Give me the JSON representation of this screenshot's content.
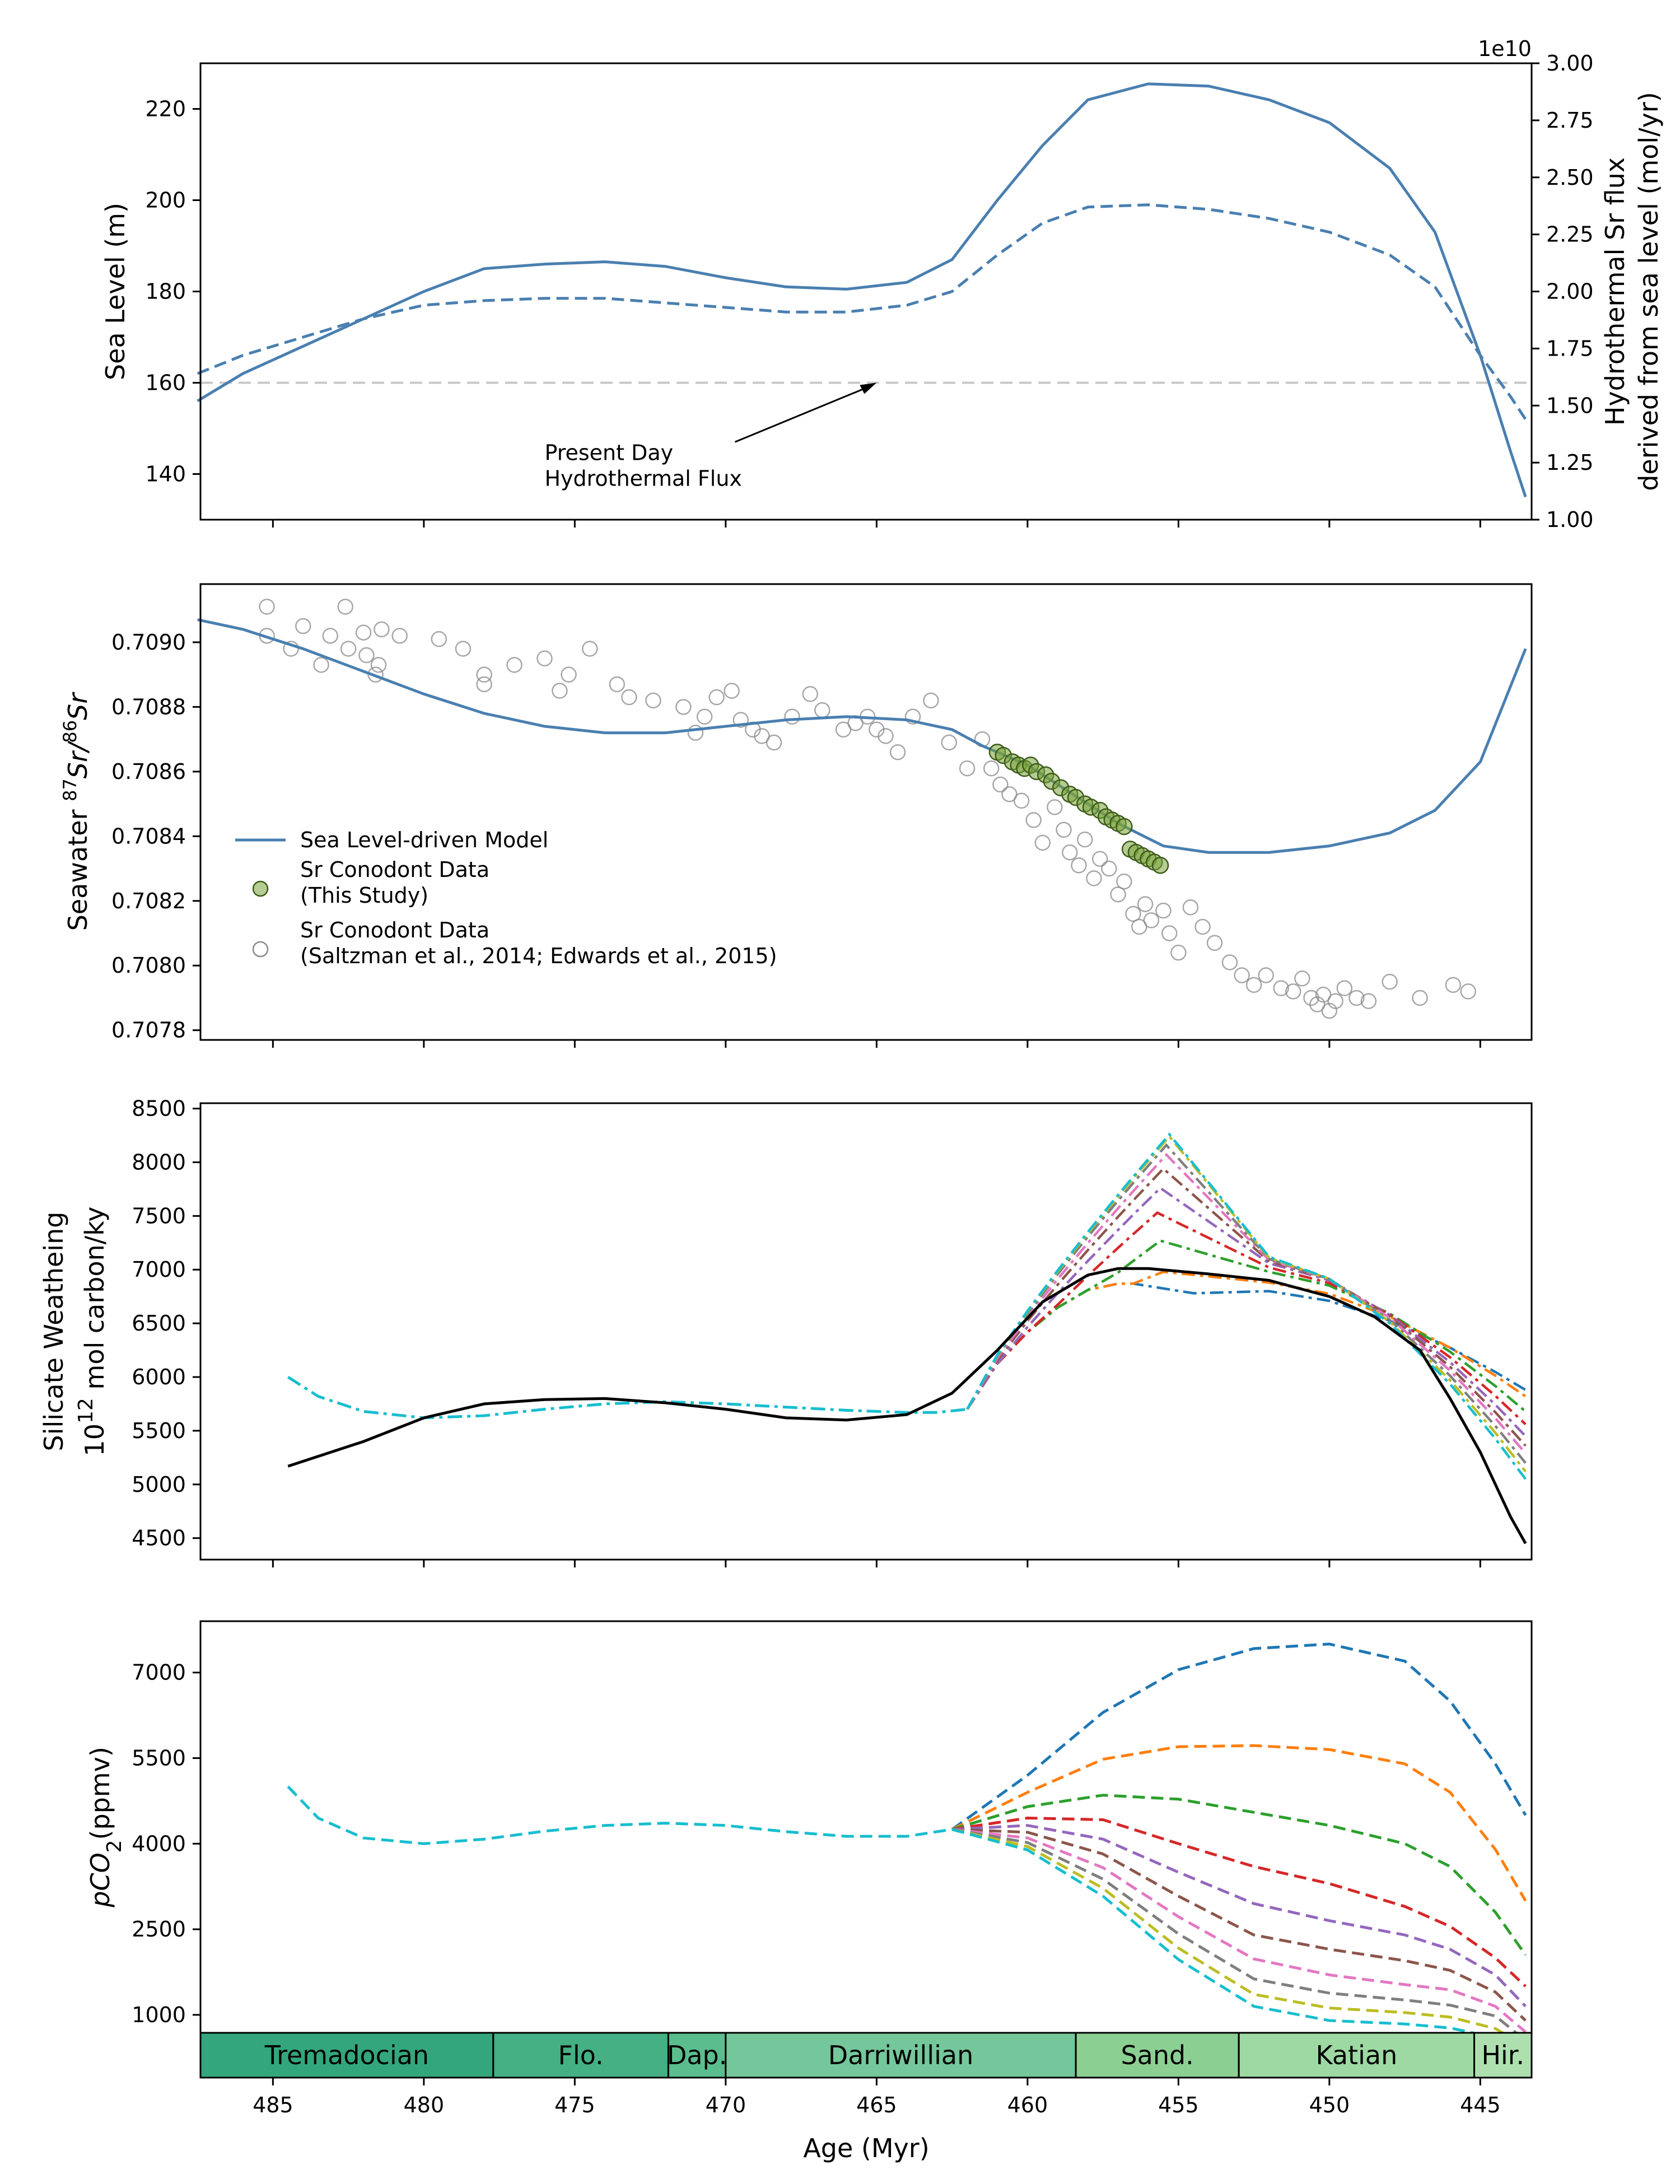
{
  "chart_data": [
    {
      "panel": "sea-level",
      "type": "line",
      "ylabel": "Sea Level (m)",
      "ylim": [
        130,
        230
      ],
      "yticks": [
        140,
        160,
        180,
        200,
        220
      ],
      "y2label_line1": "Hydrothermal Sr flux",
      "y2label_line2": "derived from sea level (mol/yr)",
      "y2_exponent": "1e10",
      "y2lim": [
        1.0,
        3.0
      ],
      "y2ticks": [
        "1.00",
        "1.25",
        "1.50",
        "1.75",
        "2.00",
        "2.25",
        "2.50",
        "2.75",
        "3.00"
      ],
      "reference_line_y": 160,
      "annotation_line1": "Present Day",
      "annotation_line2": "Hydrothermal Flux",
      "annotation_arrow_target": [
        465,
        160
      ],
      "annotation_text_anchor": [
        476,
        148
      ],
      "series": [
        {
          "style": "solid",
          "color": "#4a7fb0",
          "x": [
            487.5,
            486.0,
            484.0,
            482.0,
            480.0,
            478.0,
            476.0,
            474.0,
            472.0,
            470.0,
            468.0,
            466.0,
            464.0,
            462.5,
            461.0,
            459.5,
            458.0,
            456.0,
            454.0,
            452.0,
            450.0,
            448.0,
            446.5,
            445.0,
            444.0,
            443.5
          ],
          "y": [
            156,
            162,
            168,
            174,
            180,
            185,
            186,
            186.5,
            185.5,
            183,
            181,
            180.5,
            182,
            187,
            200,
            212,
            222,
            225.5,
            225,
            222,
            217,
            207,
            193,
            166,
            145,
            135
          ]
        },
        {
          "style": "dashed",
          "color": "#4a7fb0",
          "x": [
            487.5,
            486.0,
            484.0,
            482.0,
            480.0,
            478.0,
            476.0,
            474.0,
            472.0,
            470.0,
            468.0,
            466.0,
            464.0,
            462.5,
            461.0,
            459.5,
            458.0,
            456.0,
            454.0,
            452.0,
            450.0,
            448.0,
            446.5,
            445.0,
            444.0,
            443.5
          ],
          "y": [
            162,
            166,
            170,
            174,
            177,
            178,
            178.5,
            178.5,
            177.5,
            176.5,
            175.5,
            175.5,
            177,
            180,
            188,
            195,
            198.5,
            199,
            198,
            196,
            193,
            188,
            181,
            166,
            157,
            152
          ]
        }
      ]
    },
    {
      "panel": "strontium",
      "type": "scatter",
      "ylabel_prefix": "Seawater ",
      "ylabel_sup1": "87",
      "ylabel_mid": "Sr/",
      "ylabel_sup2": "86",
      "ylabel_suffix": "Sr",
      "ylim": [
        0.70777,
        0.70918
      ],
      "yticks": [
        "0.7078",
        "0.7080",
        "0.7082",
        "0.7084",
        "0.7086",
        "0.7088",
        "0.7090"
      ],
      "legend": [
        "Sea Level-driven Model",
        "Sr Conodont Data",
        "(This Study)",
        "Sr Conodont Data",
        "(Saltzman et al., 2014; Edwards et al., 2015)"
      ],
      "model": {
        "x": [
          487.5,
          486.0,
          484.0,
          482.0,
          480.0,
          478.0,
          476.0,
          474.0,
          472.0,
          470.0,
          468.0,
          466.0,
          464.0,
          462.5,
          461.5,
          460.0,
          458.5,
          457.0,
          455.5,
          454.0,
          452.0,
          450.0,
          448.0,
          446.5,
          445.0,
          443.5
        ],
        "y": [
          0.70907,
          0.70904,
          0.70898,
          0.70891,
          0.70884,
          0.70878,
          0.70874,
          0.70872,
          0.70872,
          0.70874,
          0.70876,
          0.70877,
          0.70876,
          0.70873,
          0.70868,
          0.70862,
          0.70853,
          0.70844,
          0.70837,
          0.70835,
          0.70835,
          0.70837,
          0.70841,
          0.70848,
          0.70863,
          0.70898
        ]
      },
      "this_study_x": [
        461.0,
        460.8,
        460.5,
        460.3,
        460.1,
        459.9,
        459.7,
        459.4,
        459.2,
        458.9,
        458.6,
        458.4,
        458.1,
        457.9,
        457.6,
        457.4,
        457.2,
        457.0,
        456.8,
        456.6,
        456.4,
        456.2,
        456.0,
        455.8,
        455.6
      ],
      "this_study_y": [
        0.70866,
        0.70865,
        0.70863,
        0.70862,
        0.70861,
        0.70862,
        0.7086,
        0.70859,
        0.70857,
        0.70855,
        0.70853,
        0.70852,
        0.7085,
        0.70849,
        0.70848,
        0.70846,
        0.70845,
        0.70844,
        0.70843,
        0.70836,
        0.70835,
        0.70834,
        0.70833,
        0.70832,
        0.70831
      ],
      "literature_x": [
        485.2,
        485.2,
        484.4,
        484.0,
        483.4,
        483.1,
        482.6,
        482.5,
        482.0,
        481.9,
        481.6,
        481.5,
        481.4,
        480.8,
        479.5,
        478.7,
        478.0,
        478.0,
        477.0,
        476.0,
        475.5,
        475.2,
        474.5,
        473.6,
        473.2,
        472.4,
        471.4,
        471.0,
        470.7,
        470.3,
        469.8,
        469.5,
        469.1,
        468.8,
        468.4,
        467.8,
        467.2,
        466.8,
        466.1,
        465.7,
        465.3,
        465.0,
        464.7,
        464.3,
        463.8,
        463.2,
        462.6,
        462.0,
        461.5,
        461.2,
        460.9,
        460.6,
        460.2,
        459.8,
        459.5,
        459.1,
        458.8,
        458.6,
        458.3,
        458.1,
        457.8,
        457.6,
        457.3,
        457.0,
        456.8,
        456.5,
        456.3,
        456.1,
        455.9,
        455.5,
        455.3,
        455.0,
        454.6,
        454.2,
        453.8,
        453.3,
        452.9,
        452.5,
        452.1,
        451.6,
        451.2,
        450.9,
        450.6,
        450.4,
        450.2,
        450.0,
        449.8,
        449.5,
        449.1,
        448.7,
        448.0,
        447.0,
        445.9,
        445.4
      ],
      "literature_y": [
        0.70911,
        0.70902,
        0.70898,
        0.70905,
        0.70893,
        0.70902,
        0.70911,
        0.70898,
        0.70903,
        0.70896,
        0.7089,
        0.70893,
        0.70904,
        0.70902,
        0.70901,
        0.70898,
        0.7089,
        0.70887,
        0.70893,
        0.70895,
        0.70885,
        0.7089,
        0.70898,
        0.70887,
        0.70883,
        0.70882,
        0.7088,
        0.70872,
        0.70877,
        0.70883,
        0.70885,
        0.70876,
        0.70873,
        0.70871,
        0.70869,
        0.70877,
        0.70884,
        0.70879,
        0.70873,
        0.70875,
        0.70877,
        0.70873,
        0.70871,
        0.70866,
        0.70877,
        0.70882,
        0.70869,
        0.70861,
        0.7087,
        0.70861,
        0.70856,
        0.70853,
        0.70851,
        0.70845,
        0.70838,
        0.70849,
        0.70842,
        0.70835,
        0.70831,
        0.70839,
        0.70827,
        0.70833,
        0.7083,
        0.70822,
        0.70826,
        0.70816,
        0.70812,
        0.70819,
        0.70814,
        0.70817,
        0.7081,
        0.70804,
        0.70818,
        0.70812,
        0.70807,
        0.70801,
        0.70797,
        0.70794,
        0.70797,
        0.70793,
        0.70792,
        0.70796,
        0.7079,
        0.70788,
        0.70791,
        0.70786,
        0.70789,
        0.70793,
        0.7079,
        0.70789,
        0.70795,
        0.7079,
        0.70794,
        0.70792
      ]
    },
    {
      "panel": "weathering",
      "type": "line",
      "ylabel_line1": "Silicate Weatheing",
      "ylabel_line2_base": "10",
      "ylabel_line2_sup": "12",
      "ylabel_line2_rest": " mol carbon/ky",
      "ylim": [
        4300,
        8550
      ],
      "yticks": [
        4500,
        5000,
        5500,
        6000,
        6500,
        7000,
        7500,
        8000,
        8500
      ],
      "baseline": {
        "color": "#000000",
        "x": [
          484.5,
          482.0,
          480.0,
          478.0,
          476.0,
          474.0,
          472.0,
          470.0,
          468.0,
          466.0,
          464.0,
          462.5,
          461.0,
          459.5,
          458.0,
          457.0,
          456.0,
          454.0,
          452.0,
          450.0,
          448.5,
          447.0,
          446.0,
          445.0,
          444.0,
          443.5
        ],
        "y": [
          5170,
          5400,
          5620,
          5750,
          5790,
          5800,
          5760,
          5700,
          5620,
          5600,
          5650,
          5850,
          6250,
          6700,
          6950,
          7010,
          7010,
          6960,
          6900,
          6750,
          6560,
          6250,
          5800,
          5300,
          4700,
          4450
        ]
      },
      "ensemble_colors": [
        "#1f77b4",
        "#ff7f0e",
        "#2ca02c",
        "#d62728",
        "#9467bd",
        "#8c564b",
        "#e377c2",
        "#7f7f7f",
        "#bcbd22",
        "#17becf"
      ],
      "ensemble_common": {
        "x": [
          484.5,
          483.5,
          482.0,
          480.0,
          478.0,
          476.0,
          474.0,
          472.0,
          470.0,
          468.0,
          466.0,
          464.0,
          463.0,
          462.0
        ],
        "y": [
          6000,
          5820,
          5680,
          5620,
          5640,
          5700,
          5750,
          5770,
          5750,
          5720,
          5690,
          5670,
          5670,
          5700
        ]
      },
      "ensemble_peak_x": [
        454.5,
        455.5,
        455.6,
        455.7,
        455.6,
        455.5,
        455.4,
        455.4,
        455.3,
        455.3
      ],
      "ensemble_peak_y": [
        6780,
        6980,
        7270,
        7530,
        7760,
        7940,
        8070,
        8160,
        8240,
        8260
      ],
      "ensemble_mid_x": 452.0,
      "ensemble_mid_y": [
        6800,
        6880,
        6980,
        7020,
        7060,
        7080,
        7090,
        7100,
        7110,
        7120
      ],
      "ensemble_end_x": 443.5,
      "ensemble_end_y": [
        5880,
        5820,
        5680,
        5560,
        5450,
        5360,
        5290,
        5200,
        5120,
        5050
      ]
    },
    {
      "panel": "pco2",
      "type": "line",
      "ylabel_italic1": "p",
      "ylabel_italic2": "CO",
      "ylabel_sub": "2",
      "ylabel_rest": "(ppmv)",
      "ylim": [
        -100,
        7900
      ],
      "yticks": [
        1000,
        2500,
        4000,
        5500,
        7000
      ],
      "ensemble_colors": [
        "#1f77b4",
        "#ff7f0e",
        "#2ca02c",
        "#d62728",
        "#9467bd",
        "#8c564b",
        "#e377c2",
        "#7f7f7f",
        "#bcbd22",
        "#17becf"
      ],
      "common": {
        "x": [
          484.5,
          483.5,
          482.0,
          480.0,
          478.0,
          476.0,
          474.0,
          472.0,
          470.0,
          468.0,
          466.0,
          464.0,
          462.5
        ],
        "y": [
          5000,
          4450,
          4100,
          4000,
          4080,
          4220,
          4320,
          4360,
          4320,
          4210,
          4130,
          4130,
          4250
        ]
      },
      "branch_x": [
        462.5,
        460.0,
        457.5,
        455.0,
        452.5,
        450.0,
        447.5,
        446.0,
        444.5,
        443.5
      ],
      "branches": [
        [
          4250,
          5200,
          6300,
          7050,
          7420,
          7500,
          7200,
          6500,
          5400,
          4500
        ],
        [
          4250,
          4900,
          5480,
          5700,
          5720,
          5650,
          5400,
          4900,
          3900,
          3000
        ],
        [
          4250,
          4650,
          4850,
          4780,
          4550,
          4320,
          4000,
          3600,
          2800,
          2050
        ],
        [
          4250,
          4450,
          4420,
          4000,
          3600,
          3300,
          2900,
          2550,
          2000,
          1500
        ],
        [
          4250,
          4320,
          4080,
          3500,
          2950,
          2650,
          2400,
          2150,
          1700,
          1150
        ],
        [
          4250,
          4200,
          3820,
          3080,
          2400,
          2150,
          1950,
          1780,
          1400,
          900
        ],
        [
          4250,
          4100,
          3580,
          2720,
          1980,
          1700,
          1530,
          1440,
          1150,
          700
        ],
        [
          4250,
          4020,
          3380,
          2420,
          1630,
          1380,
          1260,
          1170,
          980,
          550
        ],
        [
          4250,
          3950,
          3220,
          2170,
          1360,
          1120,
          1040,
          960,
          760,
          450
        ],
        [
          4250,
          3890,
          3080,
          1970,
          1150,
          900,
          840,
          770,
          600,
          350
        ]
      ]
    }
  ],
  "stages": [
    {
      "label": "Tremadocian",
      "start": 487.4,
      "end": 477.7,
      "color": "#33a67d"
    },
    {
      "label": "Flo.",
      "start": 477.7,
      "end": 471.9,
      "color": "#44b084"
    },
    {
      "label": "Dap.",
      "start": 471.9,
      "end": 470.0,
      "color": "#5bbd8e"
    },
    {
      "label": "Darriwillian",
      "start": 470.0,
      "end": 458.4,
      "color": "#74c79a"
    },
    {
      "label": "Sand.",
      "start": 458.4,
      "end": 453.0,
      "color": "#8ccf92"
    },
    {
      "label": "Katian",
      "start": 453.0,
      "end": 445.2,
      "color": "#9ed8a2"
    },
    {
      "label": "Hir.",
      "start": 445.2,
      "end": 443.3,
      "color": "#ade0ae"
    }
  ],
  "xaxis": {
    "label": "Age (Myr)",
    "xlim": [
      487.4,
      443.3
    ],
    "ticks": [
      485,
      480,
      475,
      470,
      465,
      460,
      455,
      450,
      445
    ],
    "tick_labels": [
      "485",
      "480",
      "475",
      "470",
      "465",
      "460",
      "455",
      "450",
      "445"
    ]
  }
}
